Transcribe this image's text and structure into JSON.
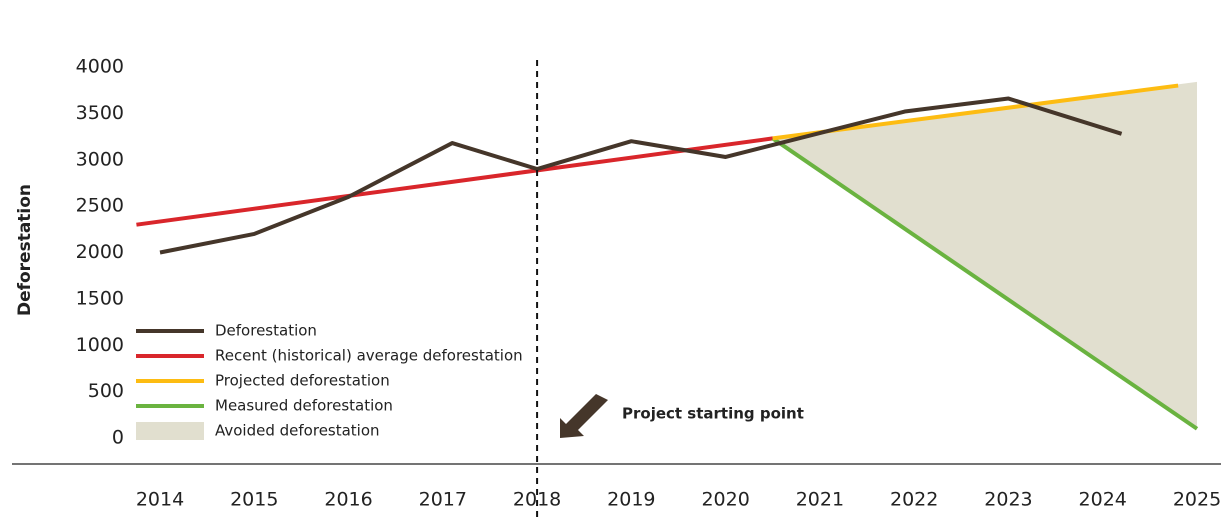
{
  "chart_data": {
    "type": "line",
    "y_label": "Deforestation",
    "annotation": "Project starting point",
    "marker_x": 2018,
    "xlim": [
      2014,
      2025
    ],
    "xticks": [
      2014,
      2015,
      2016,
      2017,
      2018,
      2019,
      2020,
      2021,
      2022,
      2023,
      2024,
      2025
    ],
    "ylim": [
      0,
      4000
    ],
    "yticks": [
      0,
      500,
      1000,
      1500,
      2000,
      2500,
      3000,
      3500,
      4000
    ],
    "series": [
      {
        "name": "Deforestation",
        "color": "#45362a",
        "x": [
          2014,
          2015,
          2016,
          2017.1,
          2018,
          2019,
          2020,
          2021.9,
          2023,
          2024.2
        ],
        "values": [
          2000,
          2200,
          2600,
          3180,
          2900,
          3200,
          3030,
          3520,
          3660,
          3280
        ]
      },
      {
        "name": "Recent (historical) average deforestation",
        "color": "#d9262b",
        "x": [
          2013.75,
          2020.5
        ],
        "values": [
          2300,
          3230
        ]
      },
      {
        "name": "Projected deforestation",
        "color": "#fdbc12",
        "x": [
          2020.5,
          2024.8
        ],
        "values": [
          3230,
          3800
        ]
      },
      {
        "name": "Measured deforestation",
        "color": "#6ab340",
        "x": [
          2020.5,
          2025
        ],
        "values": [
          3230,
          100
        ]
      },
      {
        "name": "Avoided deforestation",
        "type": "area",
        "color": "#e1dfcf",
        "x": [
          2020.5,
          2025
        ],
        "values": [
          3230,
          3840
        ],
        "lower": [
          3230,
          100
        ]
      }
    ]
  }
}
